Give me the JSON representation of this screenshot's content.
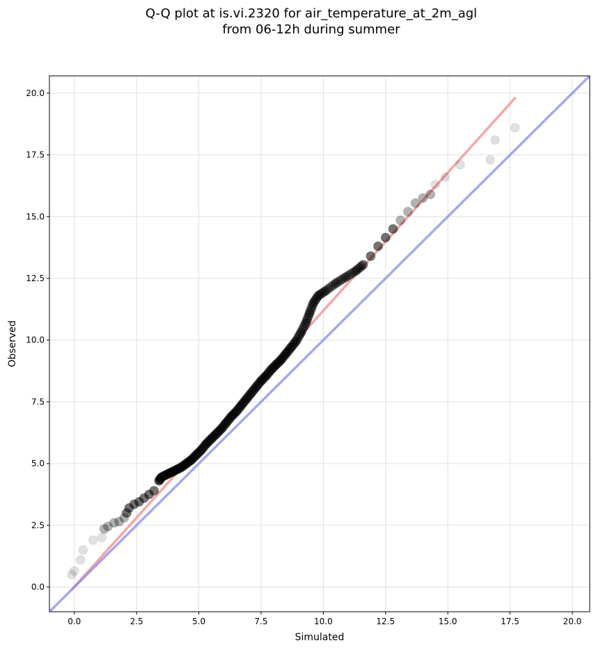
{
  "chart_data": {
    "type": "scatter",
    "title_lines": [
      "Q-Q plot at is.vi.2320 for air_temperature_at_2m_agl",
      "from 06-12h during summer"
    ],
    "xlabel": "Simulated",
    "ylabel": "Observed",
    "xlim": [
      -1.0,
      20.7
    ],
    "ylim": [
      -1.0,
      20.7
    ],
    "xticks": [
      "0.0",
      "2.5",
      "5.0",
      "7.5",
      "10.0",
      "12.5",
      "15.0",
      "17.5",
      "20.0"
    ],
    "yticks": [
      "0.0",
      "2.5",
      "5.0",
      "7.5",
      "10.0",
      "12.5",
      "15.0",
      "17.5",
      "20.0"
    ],
    "grid": true,
    "colors": {
      "points": "#000000",
      "fit_line": "#f08080",
      "identity_line": "#8888ee",
      "grid": "#e0e0e0"
    },
    "series": [
      {
        "points_xy": [
          [
            -0.1,
            0.5
          ],
          [
            0.0,
            0.65
          ],
          [
            0.25,
            1.1
          ],
          [
            0.35,
            1.5
          ],
          [
            0.75,
            1.9
          ],
          [
            1.1,
            2.0
          ],
          [
            1.2,
            2.35
          ],
          [
            1.35,
            2.45
          ],
          [
            1.6,
            2.6
          ],
          [
            1.8,
            2.65
          ],
          [
            2.0,
            2.8
          ],
          [
            2.1,
            3.0
          ],
          [
            2.2,
            3.2
          ],
          [
            2.4,
            3.35
          ],
          [
            2.6,
            3.45
          ],
          [
            2.8,
            3.6
          ],
          [
            3.0,
            3.75
          ],
          [
            3.2,
            3.9
          ],
          [
            3.4,
            4.3
          ],
          [
            3.5,
            4.45
          ],
          [
            3.7,
            4.55
          ],
          [
            3.9,
            4.65
          ],
          [
            4.1,
            4.75
          ],
          [
            4.3,
            4.85
          ],
          [
            4.5,
            5.0
          ],
          [
            4.7,
            5.15
          ],
          [
            4.9,
            5.35
          ],
          [
            5.1,
            5.55
          ],
          [
            5.3,
            5.8
          ],
          [
            5.5,
            6.0
          ],
          [
            5.7,
            6.2
          ],
          [
            5.9,
            6.4
          ],
          [
            6.1,
            6.65
          ],
          [
            6.3,
            6.9
          ],
          [
            6.5,
            7.1
          ],
          [
            6.7,
            7.35
          ],
          [
            6.9,
            7.6
          ],
          [
            7.1,
            7.85
          ],
          [
            7.3,
            8.1
          ],
          [
            7.5,
            8.35
          ],
          [
            7.7,
            8.55
          ],
          [
            7.9,
            8.8
          ],
          [
            8.1,
            9.0
          ],
          [
            8.3,
            9.2
          ],
          [
            8.5,
            9.45
          ],
          [
            8.7,
            9.7
          ],
          [
            8.9,
            9.95
          ],
          [
            9.1,
            10.3
          ],
          [
            9.3,
            10.7
          ],
          [
            9.45,
            11.1
          ],
          [
            9.6,
            11.5
          ],
          [
            9.8,
            11.8
          ],
          [
            10.1,
            12.0
          ],
          [
            10.5,
            12.3
          ],
          [
            10.9,
            12.55
          ],
          [
            11.3,
            12.8
          ],
          [
            11.6,
            13.05
          ],
          [
            11.9,
            13.4
          ],
          [
            12.2,
            13.8
          ],
          [
            12.5,
            14.15
          ],
          [
            12.8,
            14.5
          ],
          [
            13.1,
            14.85
          ],
          [
            13.4,
            15.2
          ],
          [
            13.7,
            15.55
          ],
          [
            14.0,
            15.75
          ],
          [
            14.3,
            15.9
          ],
          [
            14.5,
            16.3
          ],
          [
            14.9,
            16.6
          ],
          [
            15.5,
            17.1
          ],
          [
            16.7,
            17.3
          ],
          [
            16.9,
            18.1
          ],
          [
            17.7,
            18.6
          ]
        ]
      }
    ],
    "fit_line": [
      [
        -0.1,
        -0.1
      ],
      [
        17.7,
        19.8
      ]
    ],
    "identity_line": [
      [
        -1.0,
        -1.0
      ],
      [
        20.7,
        20.7
      ]
    ]
  }
}
